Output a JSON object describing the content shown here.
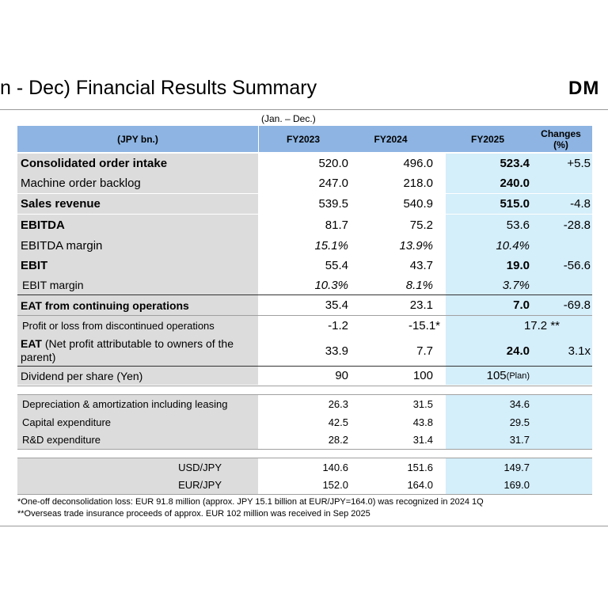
{
  "title": "n - Dec) Financial Results Summary",
  "logo_text": "DM",
  "period_note": "(Jan. – Dec.)",
  "header": {
    "unit": "(JPY bn.)",
    "fy2023": "FY2023",
    "fy2024": "FY2024",
    "fy2025": "FY2025",
    "changes_line1": "Changes",
    "changes_line2": "(%)"
  },
  "rows": [
    {
      "label": "Consolidated order intake",
      "fy2023": "520.0",
      "fy2024": "496.0",
      "fy2025": "523.4",
      "change": "+5.5"
    },
    {
      "label": "Machine order backlog",
      "fy2023": "247.0",
      "fy2024": "218.0",
      "fy2025": "240.0",
      "change": ""
    },
    {
      "label": "Sales revenue",
      "fy2023": "539.5",
      "fy2024": "540.9",
      "fy2025": "515.0",
      "change": "-4.8"
    },
    {
      "label": "EBITDA",
      "fy2023": "81.7",
      "fy2024": "75.2",
      "fy2025": "53.6",
      "change": "-28.8"
    },
    {
      "label": "EBITDA margin",
      "fy2023": "15.1%",
      "fy2024": "13.9%",
      "fy2025": "10.4%",
      "change": ""
    },
    {
      "label": "EBIT",
      "fy2023": "55.4",
      "fy2024": "43.7",
      "fy2025": "19.0",
      "change": "-56.6"
    },
    {
      "label": "EBIT margin",
      "fy2023": "10.3%",
      "fy2024": "8.1%",
      "fy2025": "3.7%",
      "change": ""
    },
    {
      "label": "EAT from continuing operations",
      "fy2023": "35.4",
      "fy2024": "23.1",
      "fy2025": "7.0",
      "change": "-69.8"
    },
    {
      "label": "Profit or loss from discontinued operations",
      "fy2023": "-1.2",
      "fy2024": "-15.1*",
      "fy2025": "17.2 **",
      "change": ""
    },
    {
      "label_bold": "EAT",
      "label_rest": " (Net profit attributable to owners of the parent)",
      "fy2023": "33.9",
      "fy2024": "7.7",
      "fy2025": "24.0",
      "change": "3.1x"
    },
    {
      "label": "Dividend per share (Yen)",
      "fy2023": "90",
      "fy2024": "100",
      "fy2025": "105",
      "fy2025_note": "(Plan)",
      "change": ""
    }
  ],
  "capex_rows": [
    {
      "label": "Depreciation & amortization including leasing",
      "fy2023": "26.3",
      "fy2024": "31.5",
      "fy2025": "34.6"
    },
    {
      "label": "Capital expenditure",
      "fy2023": "42.5",
      "fy2024": "43.8",
      "fy2025": "29.5"
    },
    {
      "label": "R&D expenditure",
      "fy2023": "28.2",
      "fy2024": "31.4",
      "fy2025": "31.7"
    }
  ],
  "fx_rows": [
    {
      "label": "USD/JPY",
      "fy2023": "140.6",
      "fy2024": "151.6",
      "fy2025": "149.7"
    },
    {
      "label": "EUR/JPY",
      "fy2023": "152.0",
      "fy2024": "164.0",
      "fy2025": "169.0"
    }
  ],
  "footnotes": [
    "*One-off deconsolidation loss: EUR 91.8 million (approx. JPY 15.1 billion at EUR/JPY=164.0) was recognized in 2024 1Q",
    "**Overseas trade insurance proceeds of approx. EUR 102 million was received in Sep 2025"
  ]
}
